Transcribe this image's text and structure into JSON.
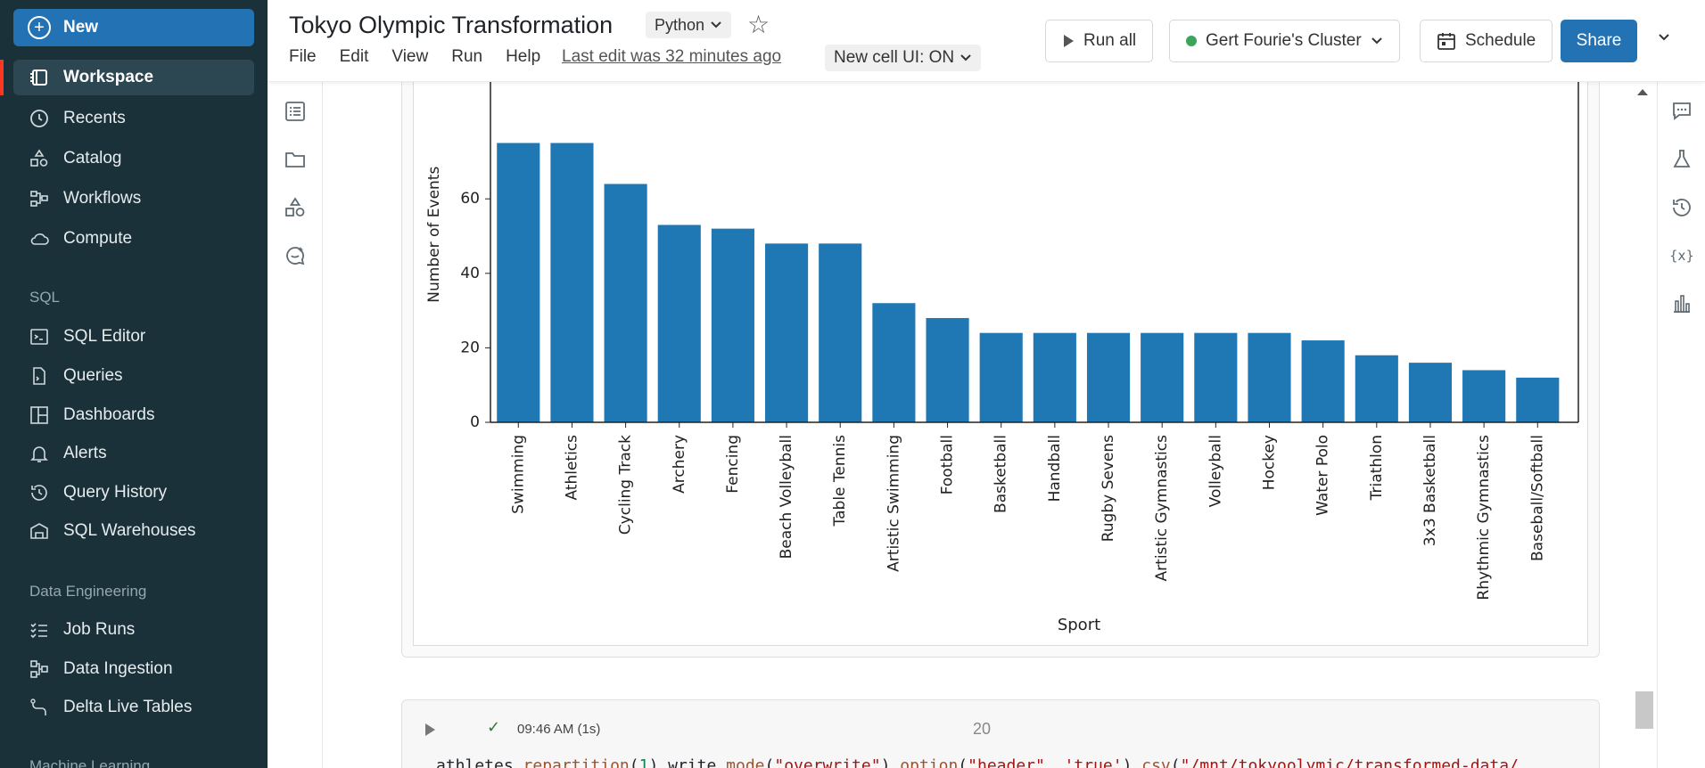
{
  "sidebar": {
    "new_label": "New",
    "items": [
      {
        "label": "Workspace",
        "icon": "workspace-icon"
      },
      {
        "label": "Recents",
        "icon": "clock-icon"
      },
      {
        "label": "Catalog",
        "icon": "catalog-icon"
      },
      {
        "label": "Workflows",
        "icon": "workflows-icon"
      },
      {
        "label": "Compute",
        "icon": "cloud-icon"
      }
    ],
    "sql_section": "SQL",
    "sql_items": [
      {
        "label": "SQL Editor",
        "icon": "sql-editor-icon"
      },
      {
        "label": "Queries",
        "icon": "queries-icon"
      },
      {
        "label": "Dashboards",
        "icon": "dashboards-icon"
      },
      {
        "label": "Alerts",
        "icon": "bell-icon"
      },
      {
        "label": "Query History",
        "icon": "history-icon"
      },
      {
        "label": "SQL Warehouses",
        "icon": "warehouse-icon"
      }
    ],
    "de_section": "Data Engineering",
    "de_items": [
      {
        "label": "Job Runs",
        "icon": "job-runs-icon"
      },
      {
        "label": "Data Ingestion",
        "icon": "ingestion-icon"
      },
      {
        "label": "Delta Live Tables",
        "icon": "pipeline-icon"
      }
    ],
    "ml_section": "Machine Learning"
  },
  "header": {
    "title": "Tokyo Olympic Transformation",
    "language": "Python",
    "menu": [
      "File",
      "Edit",
      "View",
      "Run",
      "Help"
    ],
    "last_edit": "Last edit was 32 minutes ago",
    "new_cell_ui": "New cell UI: ON",
    "run_all": "Run all",
    "cluster": "Gert Fourie's Cluster",
    "cluster_status_color": "#3ba55c",
    "schedule": "Schedule",
    "share": "Share"
  },
  "cell2": {
    "time": "09:46 AM (1s)",
    "cell_number": "20",
    "code_plain_1": "athletes.",
    "code_fn_1": "repartition",
    "code_plain_2": "(",
    "code_num_1": "1",
    "code_plain_3": ").write.",
    "code_fn_2": "mode",
    "code_plain_4": "(",
    "code_str_1": "\"overwrite\"",
    "code_plain_5": ").",
    "code_fn_3": "option",
    "code_plain_6": "(",
    "code_str_2": "\"header\"",
    "code_plain_7": ", ",
    "code_str_3": "'true'",
    "code_plain_8": ").",
    "code_fn_4": "csv",
    "code_plain_9": "(",
    "code_str_4": "\"/mnt/tokyoolymic/transformed-data/"
  },
  "chart_data": {
    "type": "bar",
    "xlabel": "Sport",
    "ylabel": "Number of Events",
    "ylim": [
      0,
      75
    ],
    "yticks": [
      0,
      20,
      40,
      60
    ],
    "bar_color": "#1f77b4",
    "categories": [
      "Swimming",
      "Athletics",
      "Cycling Track",
      "Archery",
      "Fencing",
      "Beach Volleyball",
      "Table Tennis",
      "Artistic Swimming",
      "Football",
      "Basketball",
      "Handball",
      "Rugby Sevens",
      "Artistic Gymnastics",
      "Volleyball",
      "Hockey",
      "Water Polo",
      "Triathlon",
      "3x3 Basketball",
      "Rhythmic Gymnastics",
      "Baseball/Softball"
    ],
    "values": [
      75,
      75,
      64,
      53,
      52,
      48,
      48,
      32,
      28,
      24,
      24,
      24,
      24,
      24,
      24,
      22,
      18,
      16,
      14,
      12
    ]
  }
}
